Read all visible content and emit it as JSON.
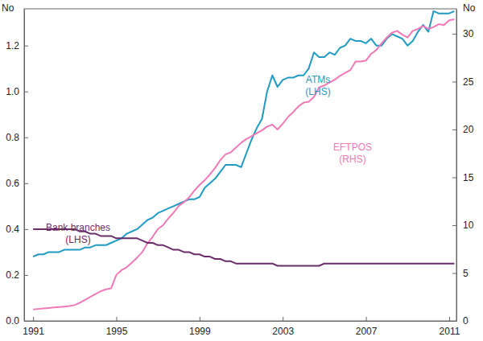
{
  "chart_data": {
    "type": "line",
    "ylabel": "No",
    "y2label": "No",
    "x": [
      1991,
      1991.25,
      1991.5,
      1991.75,
      1992,
      1992.25,
      1992.5,
      1992.75,
      1993,
      1993.25,
      1993.5,
      1993.75,
      1994,
      1994.25,
      1994.5,
      1994.75,
      1995,
      1995.25,
      1995.5,
      1995.75,
      1996,
      1996.25,
      1996.5,
      1996.75,
      1997,
      1997.25,
      1997.5,
      1997.75,
      1998,
      1998.25,
      1998.5,
      1998.75,
      1999,
      1999.25,
      1999.5,
      1999.75,
      2000,
      2000.25,
      2000.5,
      2000.75,
      2001,
      2001.25,
      2001.5,
      2001.75,
      2002,
      2002.25,
      2002.5,
      2002.75,
      2003,
      2003.25,
      2003.5,
      2003.75,
      2004,
      2004.25,
      2004.5,
      2004.75,
      2005,
      2005.25,
      2005.5,
      2005.75,
      2006,
      2006.25,
      2006.5,
      2006.75,
      2007,
      2007.25,
      2007.5,
      2007.75,
      2008,
      2008.25,
      2008.5,
      2008.75,
      2009,
      2009.25,
      2009.5,
      2009.75,
      2010,
      2010.25,
      2010.5,
      2010.75,
      2011,
      2011.25
    ],
    "xlim": [
      1990.57,
      2011.35
    ],
    "xticks": [
      1991,
      1995,
      1999,
      2003,
      2007,
      2011
    ],
    "ylim": [
      0,
      1.36
    ],
    "yticks": [
      {
        "value": 0,
        "label": "0.0"
      },
      0.2,
      0.4,
      0.6,
      0.8,
      {
        "value": 1,
        "label": "1.0"
      },
      1.2
    ],
    "y2lim": [
      0,
      32.6
    ],
    "y2ticks": [
      0,
      5,
      10,
      15,
      20,
      25,
      30
    ],
    "series": [
      {
        "axis": "y",
        "color": "#1f9bc4",
        "values": [
          0.28,
          0.29,
          0.29,
          0.3,
          0.3,
          0.3,
          0.31,
          0.31,
          0.31,
          0.31,
          0.32,
          0.32,
          0.33,
          0.33,
          0.33,
          0.34,
          0.35,
          0.36,
          0.38,
          0.39,
          0.4,
          0.42,
          0.44,
          0.45,
          0.47,
          0.48,
          0.49,
          0.5,
          0.51,
          0.52,
          0.53,
          0.53,
          0.54,
          0.58,
          0.6,
          0.62,
          0.65,
          0.68,
          0.68,
          0.68,
          0.67,
          0.73,
          0.79,
          0.84,
          0.88,
          1.0,
          1.07,
          1.02,
          1.05,
          1.06,
          1.06,
          1.07,
          1.07,
          1.1,
          1.17,
          1.15,
          1.15,
          1.17,
          1.16,
          1.19,
          1.2,
          1.23,
          1.22,
          1.22,
          1.21,
          1.23,
          1.2,
          1.2,
          1.23,
          1.25,
          1.24,
          1.23,
          1.2,
          1.22,
          1.26,
          1.29,
          1.26,
          1.35,
          1.34,
          1.34,
          1.34,
          1.35
        ]
      },
      {
        "axis": "y2",
        "color": "#f07ab8",
        "values": [
          1.2,
          1.25,
          1.3,
          1.35,
          1.4,
          1.45,
          1.5,
          1.55,
          1.65,
          1.9,
          2.2,
          2.5,
          2.8,
          3.1,
          3.3,
          3.4,
          4.8,
          5.3,
          5.6,
          6.1,
          6.6,
          7.2,
          8.1,
          8.8,
          9.6,
          10.0,
          10.7,
          11.3,
          12.0,
          12.4,
          12.9,
          13.6,
          14.2,
          14.7,
          15.3,
          16.0,
          16.8,
          17.4,
          17.6,
          18.1,
          18.6,
          19.0,
          19.3,
          19.6,
          19.9,
          20.3,
          20.5,
          20.0,
          20.6,
          21.3,
          21.8,
          22.4,
          22.8,
          22.9,
          23.4,
          24.4,
          24.6,
          24.9,
          25.2,
          25.6,
          25.9,
          26.2,
          27.1,
          27.1,
          27.2,
          27.9,
          28.3,
          29.0,
          29.6,
          30.1,
          30.3,
          29.9,
          29.6,
          30.3,
          30.5,
          30.8,
          30.5,
          30.7,
          31.0,
          30.9,
          31.4,
          31.5
        ]
      },
      {
        "axis": "y",
        "color": "#6b2c6b",
        "values": [
          0.4,
          0.4,
          0.4,
          0.4,
          0.4,
          0.4,
          0.4,
          0.4,
          0.4,
          0.39,
          0.39,
          0.38,
          0.38,
          0.37,
          0.37,
          0.37,
          0.36,
          0.36,
          0.36,
          0.36,
          0.36,
          0.35,
          0.34,
          0.34,
          0.33,
          0.33,
          0.32,
          0.31,
          0.31,
          0.3,
          0.3,
          0.29,
          0.29,
          0.28,
          0.28,
          0.27,
          0.27,
          0.26,
          0.26,
          0.25,
          0.25,
          0.25,
          0.25,
          0.25,
          0.25,
          0.25,
          0.25,
          0.24,
          0.24,
          0.24,
          0.24,
          0.24,
          0.24,
          0.24,
          0.24,
          0.24,
          0.25,
          0.25,
          0.25,
          0.25,
          0.25,
          0.25,
          0.25,
          0.25,
          0.25,
          0.25,
          0.25,
          0.25,
          0.25,
          0.25,
          0.25,
          0.25,
          0.25,
          0.25,
          0.25,
          0.25,
          0.25,
          0.25,
          0.25,
          0.25,
          0.25,
          0.25
        ]
      }
    ],
    "annotations": [
      {
        "lines": [
          "ATMs",
          "(LHS)"
        ]
      },
      {
        "lines": [
          "EFTPOS",
          "(RHS)"
        ]
      },
      {
        "lines": [
          "Bank branches",
          "(LHS)"
        ]
      }
    ]
  }
}
